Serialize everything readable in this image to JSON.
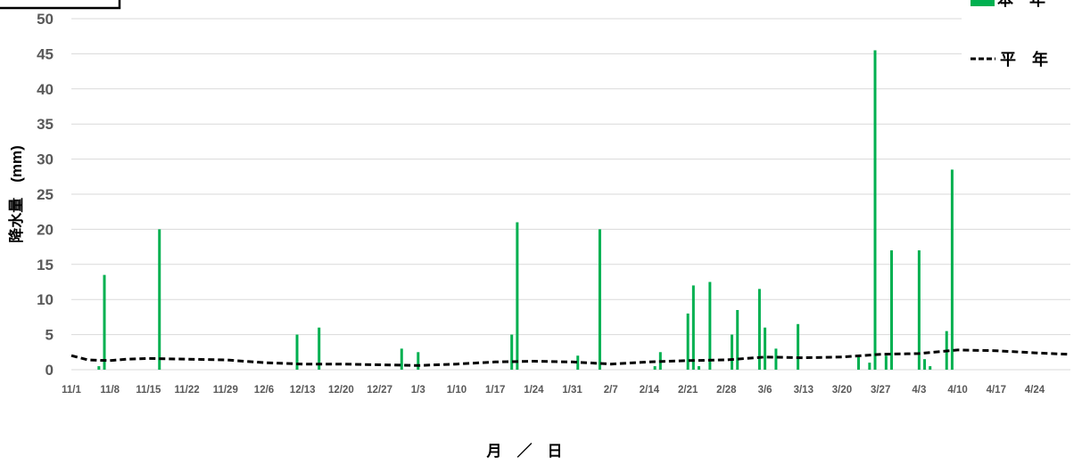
{
  "chart_data": {
    "type": "bar",
    "xlabel": "月　／　日",
    "ylabel": "降水量　(mm)",
    "ylim": [
      0,
      50
    ],
    "yticks": [
      0,
      5,
      10,
      15,
      20,
      25,
      30,
      35,
      40,
      45,
      50
    ],
    "xlim": [
      "11/1",
      "4/30"
    ],
    "xticks": [
      "11/1",
      "11/8",
      "11/15",
      "11/22",
      "11/29",
      "12/6",
      "12/13",
      "12/20",
      "12/27",
      "1/3",
      "1/10",
      "1/17",
      "1/24",
      "1/31",
      "2/7",
      "2/14",
      "2/21",
      "2/28",
      "3/6",
      "3/13",
      "3/20",
      "3/27",
      "4/3",
      "4/10",
      "4/17",
      "4/24"
    ],
    "grid": true,
    "legend_position": "top-right",
    "series": [
      {
        "name": "本　年",
        "type": "bar",
        "color": "#00b050",
        "points": [
          {
            "x": "11/6",
            "y": 0.5
          },
          {
            "x": "11/7",
            "y": 13.5
          },
          {
            "x": "11/17",
            "y": 20
          },
          {
            "x": "12/12",
            "y": 5
          },
          {
            "x": "12/16",
            "y": 6
          },
          {
            "x": "12/31",
            "y": 3
          },
          {
            "x": "1/3",
            "y": 2.5
          },
          {
            "x": "1/20",
            "y": 5
          },
          {
            "x": "1/21",
            "y": 21
          },
          {
            "x": "2/1",
            "y": 2
          },
          {
            "x": "2/5",
            "y": 20
          },
          {
            "x": "2/15",
            "y": 0.5
          },
          {
            "x": "2/16",
            "y": 2.5
          },
          {
            "x": "2/21",
            "y": 8
          },
          {
            "x": "2/22",
            "y": 12
          },
          {
            "x": "2/23",
            "y": 0.5
          },
          {
            "x": "2/25",
            "y": 12.5
          },
          {
            "x": "2/29",
            "y": 5
          },
          {
            "x": "3/1",
            "y": 8.5
          },
          {
            "x": "3/5",
            "y": 11.5
          },
          {
            "x": "3/6",
            "y": 6
          },
          {
            "x": "3/8",
            "y": 3
          },
          {
            "x": "3/12",
            "y": 6.5
          },
          {
            "x": "3/23",
            "y": 2
          },
          {
            "x": "3/25",
            "y": 1
          },
          {
            "x": "3/26",
            "y": 45.5
          },
          {
            "x": "3/28",
            "y": 2
          },
          {
            "x": "3/29",
            "y": 17
          },
          {
            "x": "4/3",
            "y": 17
          },
          {
            "x": "4/4",
            "y": 1.5
          },
          {
            "x": "4/5",
            "y": 0.5
          },
          {
            "x": "4/8",
            "y": 5.5
          },
          {
            "x": "4/9",
            "y": 28.5
          }
        ]
      },
      {
        "name": "平　年",
        "type": "line",
        "line_style": "dashed",
        "color": "#000000",
        "points": [
          {
            "x": "11/1",
            "y": 2.0
          },
          {
            "x": "11/4",
            "y": 1.4
          },
          {
            "x": "11/8",
            "y": 1.3
          },
          {
            "x": "11/11",
            "y": 1.5
          },
          {
            "x": "11/15",
            "y": 1.6
          },
          {
            "x": "11/22",
            "y": 1.5
          },
          {
            "x": "11/29",
            "y": 1.4
          },
          {
            "x": "12/6",
            "y": 1.0
          },
          {
            "x": "12/13",
            "y": 0.8
          },
          {
            "x": "12/20",
            "y": 0.8
          },
          {
            "x": "12/27",
            "y": 0.7
          },
          {
            "x": "1/3",
            "y": 0.6
          },
          {
            "x": "1/10",
            "y": 0.8
          },
          {
            "x": "1/17",
            "y": 1.1
          },
          {
            "x": "1/24",
            "y": 1.2
          },
          {
            "x": "1/31",
            "y": 1.1
          },
          {
            "x": "2/7",
            "y": 0.8
          },
          {
            "x": "2/14",
            "y": 1.1
          },
          {
            "x": "2/21",
            "y": 1.3
          },
          {
            "x": "2/28",
            "y": 1.4
          },
          {
            "x": "3/6",
            "y": 1.8
          },
          {
            "x": "3/13",
            "y": 1.7
          },
          {
            "x": "3/20",
            "y": 1.8
          },
          {
            "x": "3/27",
            "y": 2.2
          },
          {
            "x": "4/3",
            "y": 2.3
          },
          {
            "x": "4/10",
            "y": 2.8
          },
          {
            "x": "4/17",
            "y": 2.7
          },
          {
            "x": "4/24",
            "y": 2.4
          },
          {
            "x": "4/30",
            "y": 2.2
          }
        ]
      }
    ]
  }
}
